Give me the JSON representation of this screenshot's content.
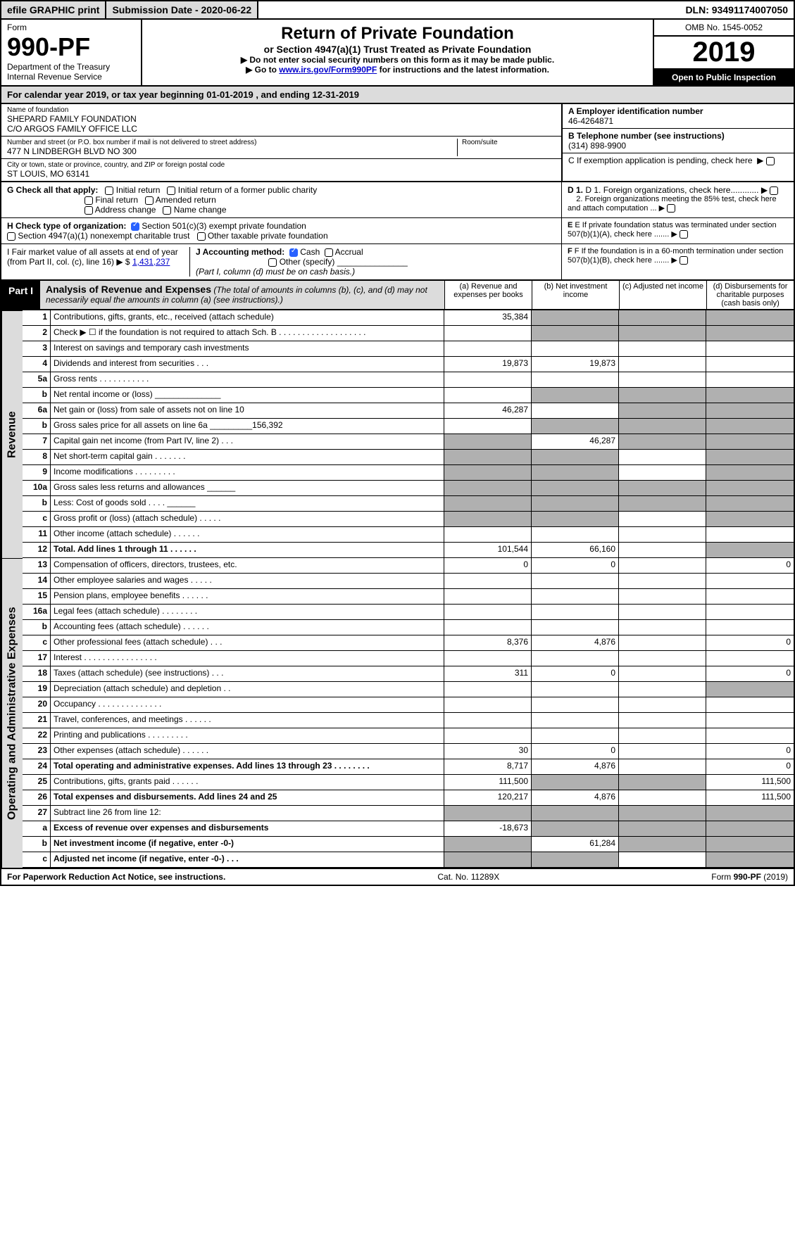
{
  "topbar": {
    "efile": "efile GRAPHIC print",
    "submission": "Submission Date - 2020-06-22",
    "dln": "DLN: 93491174007050"
  },
  "header": {
    "form_word": "Form",
    "form_no": "990-PF",
    "dept": "Department of the Treasury",
    "irs": "Internal Revenue Service",
    "title": "Return of Private Foundation",
    "subtitle": "or Section 4947(a)(1) Trust Treated as Private Foundation",
    "note1": "▶ Do not enter social security numbers on this form as it may be made public.",
    "note2_prefix": "▶ Go to ",
    "note2_link": "www.irs.gov/Form990PF",
    "note2_suffix": " for instructions and the latest information.",
    "omb": "OMB No. 1545-0052",
    "year": "2019",
    "open": "Open to Public Inspection"
  },
  "cal_year": "For calendar year 2019, or tax year beginning 01-01-2019           , and ending 12-31-2019",
  "ident": {
    "name_label": "Name of foundation",
    "name1": "SHEPARD FAMILY FOUNDATION",
    "name2": "C/O ARGOS FAMILY OFFICE LLC",
    "addr_label": "Number and street (or P.O. box number if mail is not delivered to street address)",
    "addr": "477 N LINDBERGH BLVD NO 300",
    "room_label": "Room/suite",
    "city_label": "City or town, state or province, country, and ZIP or foreign postal code",
    "city": "ST LOUIS, MO  63141",
    "a_label": "A Employer identification number",
    "a_val": "46-4264871",
    "b_label": "B Telephone number (see instructions)",
    "b_val": "(314) 898-9900",
    "c_label": "C If exemption application is pending, check here",
    "d1": "D 1. Foreign organizations, check here............",
    "d2": "2. Foreign organizations meeting the 85% test, check here and attach computation ...",
    "e": "E  If private foundation status was terminated under section 507(b)(1)(A), check here .......",
    "f": "F  If the foundation is in a 60-month termination under section 507(b)(1)(B), check here ......."
  },
  "g": {
    "label": "G Check all that apply:",
    "initial": "Initial return",
    "initial_former": "Initial return of a former public charity",
    "final": "Final return",
    "amended": "Amended return",
    "addr_change": "Address change",
    "name_change": "Name change"
  },
  "h": {
    "label": "H Check type of organization:",
    "s501": "Section 501(c)(3) exempt private foundation",
    "s4947": "Section 4947(a)(1) nonexempt charitable trust",
    "other_tax": "Other taxable private foundation"
  },
  "i": {
    "label": "I Fair market value of all assets at end of year (from Part II, col. (c), line 16) ▶ $",
    "val": "1,431,237"
  },
  "j": {
    "label": "J Accounting method:",
    "cash": "Cash",
    "accrual": "Accrual",
    "other": "Other (specify)",
    "note": "(Part I, column (d) must be on cash basis.)"
  },
  "part1": {
    "label": "Part I",
    "title": "Analysis of Revenue and Expenses",
    "sub": "(The total of amounts in columns (b), (c), and (d) may not necessarily equal the amounts in column (a) (see instructions).)",
    "col_a": "(a)   Revenue and expenses per books",
    "col_b": "(b)  Net investment income",
    "col_c": "(c)  Adjusted net income",
    "col_d": "(d)  Disbursements for charitable purposes (cash basis only)"
  },
  "side": {
    "revenue": "Revenue",
    "expenses": "Operating and Administrative Expenses"
  },
  "rows": [
    {
      "n": "1",
      "d": "Contributions, gifts, grants, etc., received (attach schedule)",
      "a": "35,384",
      "b": "",
      "bs": 1,
      "cs": 1,
      "ds": 1
    },
    {
      "n": "2",
      "d": "Check ▶ ☐ if the foundation is not required to attach Sch. B   . . . . . . . . . . . . . . . . . . .",
      "bs": 1,
      "cs": 1,
      "ds": 1
    },
    {
      "n": "3",
      "d": "Interest on savings and temporary cash investments"
    },
    {
      "n": "4",
      "d": "Dividends and interest from securities   .  .  .",
      "a": "19,873",
      "b": "19,873"
    },
    {
      "n": "5a",
      "d": "Gross rents    . . . . . . . . . . ."
    },
    {
      "n": "b",
      "d": "Net rental income or (loss)  ______________",
      "bs": 1,
      "cs": 1,
      "ds": 1
    },
    {
      "n": "6a",
      "d": "Net gain or (loss) from sale of assets not on line 10",
      "a": "46,287",
      "bs": 0,
      "cs": 1,
      "ds": 1
    },
    {
      "n": "b",
      "d": "Gross sales price for all assets on line 6a _________156,392",
      "bs": 1,
      "cs": 1,
      "ds": 1
    },
    {
      "n": "7",
      "d": "Capital gain net income (from Part IV, line 2)  .  .  .",
      "as": 1,
      "b": "46,287",
      "cs": 1,
      "ds": 1
    },
    {
      "n": "8",
      "d": "Net short-term capital gain  . . . . . . .",
      "as": 1,
      "bs": 1,
      "ds": 1
    },
    {
      "n": "9",
      "d": "Income modifications  . . . . . . . . .",
      "as": 1,
      "bs": 1,
      "ds": 1
    },
    {
      "n": "10a",
      "d": "Gross sales less returns and allowances  ______",
      "as": 1,
      "bs": 1,
      "cs": 1,
      "ds": 1
    },
    {
      "n": "b",
      "d": "Less: Cost of goods sold   .  .  .  .  ______",
      "as": 1,
      "bs": 1,
      "cs": 1,
      "ds": 1
    },
    {
      "n": "c",
      "d": "Gross profit or (loss) (attach schedule)  . . . . .",
      "as": 1,
      "bs": 1,
      "ds": 1
    },
    {
      "n": "11",
      "d": "Other income (attach schedule)   . . . . . ."
    },
    {
      "n": "12",
      "d": "Total. Add lines 1 through 11   . . . . . .",
      "a": "101,544",
      "b": "66,160",
      "ds": 1,
      "bold": 1
    }
  ],
  "exp_rows": [
    {
      "n": "13",
      "d": "Compensation of officers, directors, trustees, etc.",
      "a": "0",
      "b": "0",
      "d4": "0"
    },
    {
      "n": "14",
      "d": "Other employee salaries and wages  . . . . ."
    },
    {
      "n": "15",
      "d": "Pension plans, employee benefits  . . . . . ."
    },
    {
      "n": "16a",
      "d": "Legal fees (attach schedule)  . . . . . . . ."
    },
    {
      "n": "b",
      "d": "Accounting fees (attach schedule)  . . . . . ."
    },
    {
      "n": "c",
      "d": "Other professional fees (attach schedule)   .  .  .",
      "a": "8,376",
      "b": "4,876",
      "d4": "0"
    },
    {
      "n": "17",
      "d": "Interest  . . . . . . . . . . . . . . . ."
    },
    {
      "n": "18",
      "d": "Taxes (attach schedule) (see instructions)   .  .  .",
      "a": "311",
      "b": "0",
      "d4": "0"
    },
    {
      "n": "19",
      "d": "Depreciation (attach schedule) and depletion   .  .",
      "ds": 1
    },
    {
      "n": "20",
      "d": "Occupancy  . . . . . . . . . . . . . ."
    },
    {
      "n": "21",
      "d": "Travel, conferences, and meetings  . . . . . ."
    },
    {
      "n": "22",
      "d": "Printing and publications  . . . . . . . . ."
    },
    {
      "n": "23",
      "d": "Other expenses (attach schedule)  . . . . . .",
      "a": "30",
      "b": "0",
      "d4": "0"
    },
    {
      "n": "24",
      "d": "Total operating and administrative expenses. Add lines 13 through 23  . . . . . . . .",
      "a": "8,717",
      "b": "4,876",
      "d4": "0",
      "bold": 1
    },
    {
      "n": "25",
      "d": "Contributions, gifts, grants paid   . . . . . .",
      "a": "111,500",
      "bs": 1,
      "cs": 1,
      "d4": "111,500"
    },
    {
      "n": "26",
      "d": "Total expenses and disbursements. Add lines 24 and 25",
      "a": "120,217",
      "b": "4,876",
      "d4": "111,500",
      "bold": 1
    },
    {
      "n": "27",
      "d": "Subtract line 26 from line 12:",
      "as": 1,
      "bs": 1,
      "cs": 1,
      "ds": 1
    },
    {
      "n": "a",
      "d": "Excess of revenue over expenses and disbursements",
      "a": "-18,673",
      "bs": 1,
      "cs": 1,
      "ds": 1,
      "bold": 1
    },
    {
      "n": "b",
      "d": "Net investment income (if negative, enter -0-)",
      "as": 1,
      "b": "61,284",
      "cs": 1,
      "ds": 1,
      "bold": 1
    },
    {
      "n": "c",
      "d": "Adjusted net income (if negative, enter -0-)  .  .  .",
      "as": 1,
      "bs": 1,
      "ds": 1,
      "bold": 1
    }
  ],
  "footer": {
    "left": "For Paperwork Reduction Act Notice, see instructions.",
    "mid": "Cat. No. 11289X",
    "right": "Form 990-PF (2019)"
  },
  "colors": {
    "shade": "#b0b0b0",
    "header_bg": "#dcdcdc",
    "link": "#0000cc",
    "check": "#2962ff"
  }
}
